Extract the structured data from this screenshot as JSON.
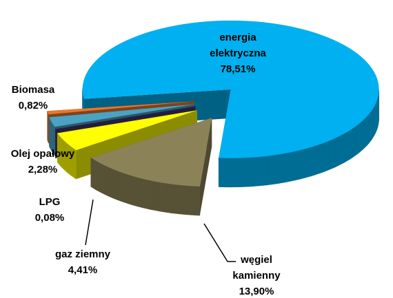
{
  "chart_data": {
    "type": "pie3d",
    "categories": [
      "energia elektryczna",
      "węgiel kamienny",
      "gaz ziemny",
      "LPG",
      "Olej opałowy",
      "Biomasa"
    ],
    "values": [
      78.51,
      13.9,
      4.41,
      0.08,
      2.28,
      0.82
    ],
    "value_labels": [
      "78,51%",
      "13,90%",
      "4,41%",
      "0,08%",
      "2,28%",
      "0,82%"
    ],
    "colors": [
      "#00b0f0",
      "#8c8257",
      "#ffff00",
      "#3f3470",
      "#4aa3c2",
      "#e8782e"
    ]
  }
}
